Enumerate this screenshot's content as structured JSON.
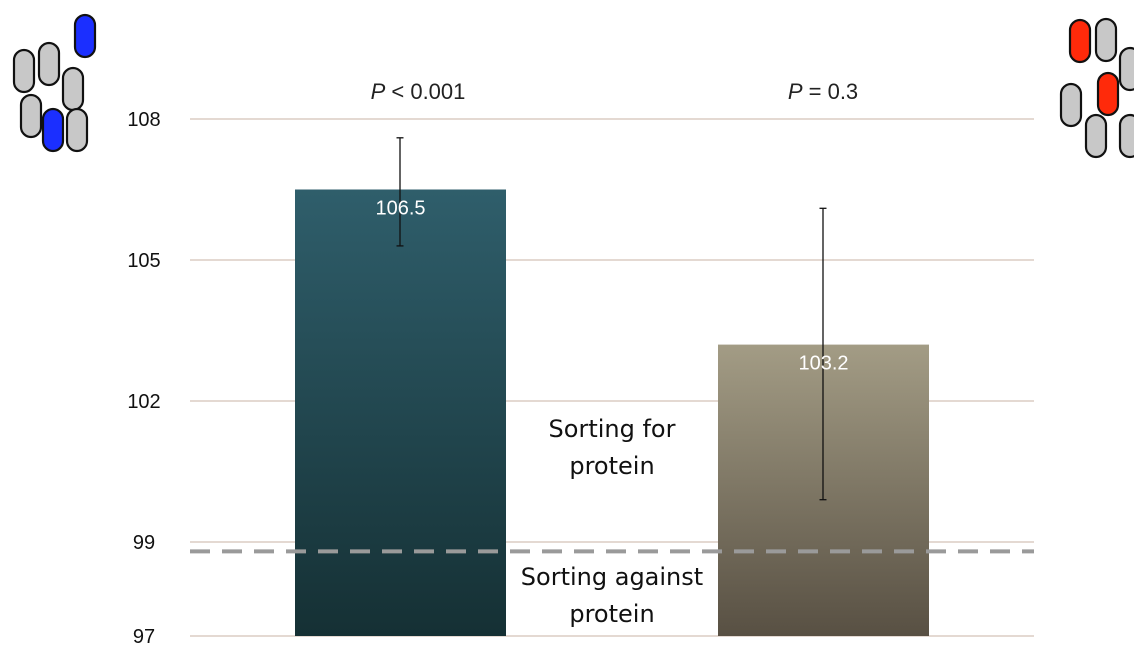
{
  "chart_data": {
    "type": "bar",
    "categories": [
      "",
      ""
    ],
    "values": [
      106.5,
      103.2
    ],
    "error_high": [
      107.6,
      106.1
    ],
    "error_low": [
      105.3,
      99.9
    ],
    "data_labels": [
      "106.5",
      "103.2"
    ],
    "p_values": [
      {
        "prefix": "P",
        "rest": " < 0.001"
      },
      {
        "prefix": "P",
        "rest": " = 0.3"
      }
    ],
    "ylim": [
      97,
      108
    ],
    "yticks": [
      97,
      99,
      102,
      105,
      108
    ],
    "grid": true,
    "reference_line": 98.8,
    "annotations": {
      "above_line": [
        "Sorting for",
        "protein"
      ],
      "below_line": [
        "Sorting against",
        "protein"
      ]
    },
    "bar_colors": [
      {
        "top": "#2f5e6b",
        "bottom": "#153034"
      },
      {
        "top": "#a39c85",
        "bottom": "#585043"
      }
    ],
    "title": "",
    "xlabel": "",
    "ylabel": ""
  },
  "icons": {
    "left": {
      "name": "cell-cluster-blue-icon",
      "highlight": "#1b2fff"
    },
    "right": {
      "name": "cell-cluster-red-icon",
      "highlight": "#ff2a0a"
    }
  },
  "colors": {
    "grid": "#c9b3a6",
    "ref_line": "#9a9a9a",
    "pill_gray": "#c8c8c8"
  }
}
